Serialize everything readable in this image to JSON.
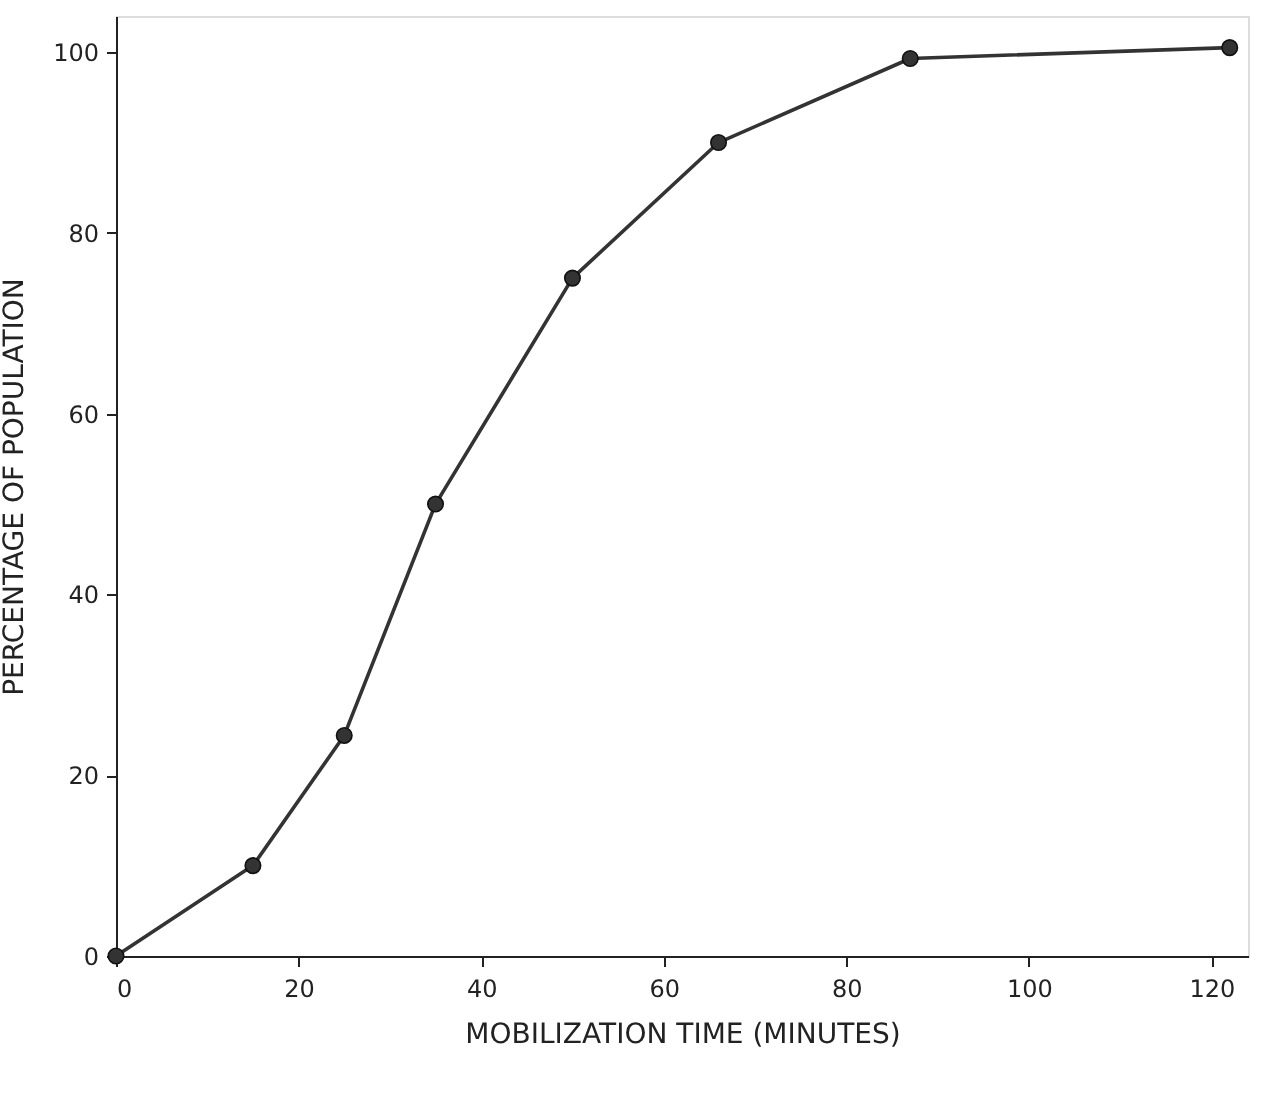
{
  "chart_data": {
    "type": "line",
    "xlabel": "MOBILIZATION TIME (MINUTES)",
    "ylabel": "PERCENTAGE OF POPULATION",
    "x": [
      0,
      15,
      25,
      35,
      50,
      66,
      87,
      122
    ],
    "series": [
      {
        "color": "#333333",
        "values": [
          0,
          10,
          24.4,
          50,
          75,
          90,
          99.3,
          100.5
        ]
      }
    ],
    "xlim": [
      0,
      124
    ],
    "ylim": [
      0,
      104
    ],
    "xticks": [
      0,
      20,
      40,
      60,
      80,
      100,
      120
    ],
    "yticks": [
      0,
      20,
      40,
      60,
      80,
      100
    ],
    "grid": false,
    "marker": "circle",
    "line_style": "solid"
  }
}
